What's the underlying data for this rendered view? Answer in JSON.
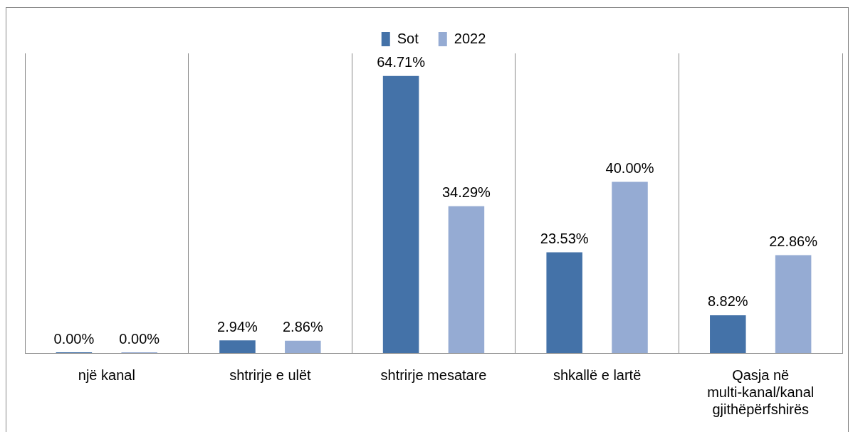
{
  "chart_data": {
    "type": "bar",
    "categories": [
      "një kanal",
      "shtrirje e ulët",
      "shtrirje mesatare",
      "shkallë e lartë",
      "Qasja në multi-kanal/kanal gjithëpërfshirës"
    ],
    "series": [
      {
        "name": "Sot",
        "color": "#4472a8",
        "values": [
          0,
          2.94,
          64.71,
          23.53,
          8.82
        ],
        "value_labels": [
          "0.00%",
          "2.94%",
          "64.71%",
          "23.53%",
          "8.82%"
        ]
      },
      {
        "name": "2022",
        "color": "#95abd3",
        "values": [
          0,
          2.86,
          34.29,
          40.0,
          22.86
        ],
        "value_labels": [
          "0.00%",
          "2.86%",
          "34.29%",
          "40.00%",
          "22.86%"
        ]
      }
    ],
    "grid": "x",
    "legend": "top"
  }
}
